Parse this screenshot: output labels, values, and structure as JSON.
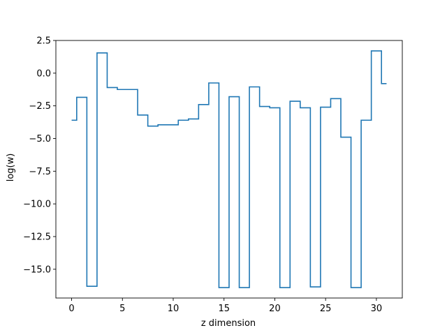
{
  "chart_data": {
    "type": "line",
    "drawstyle": "steps-mid",
    "title": "",
    "xlabel": "z dimension",
    "ylabel": "log(w)",
    "xlim": [
      -1.55,
      32.55
    ],
    "ylim": [
      -17.2,
      2.5
    ],
    "xticks": [
      0,
      5,
      10,
      15,
      20,
      25,
      30
    ],
    "xtick_labels": [
      "0",
      "5",
      "10",
      "15",
      "20",
      "25",
      "30"
    ],
    "yticks": [
      2.5,
      0.0,
      -2.5,
      -5.0,
      -7.5,
      -10.0,
      -12.5,
      -15.0
    ],
    "ytick_labels": [
      "2.5",
      "0.0",
      "−2.5",
      "−5.0",
      "−7.5",
      "−10.0",
      "−12.5",
      "−15.0"
    ],
    "grid": false,
    "legend": "none",
    "series": [
      {
        "color": "#1f77b4",
        "x": [
          0,
          1,
          2,
          3,
          4,
          5,
          6,
          7,
          8,
          9,
          10,
          11,
          12,
          13,
          14,
          15,
          16,
          17,
          18,
          19,
          20,
          21,
          22,
          23,
          24,
          25,
          26,
          27,
          28,
          29,
          30,
          31
        ],
        "y": [
          -3.6,
          -1.85,
          -16.3,
          1.55,
          -1.1,
          -1.25,
          -1.25,
          -3.2,
          -4.05,
          -3.95,
          -3.95,
          -3.6,
          -3.5,
          -2.4,
          -0.75,
          -16.4,
          -1.8,
          -16.4,
          -1.05,
          -2.55,
          -2.65,
          -16.4,
          -2.15,
          -2.65,
          -16.35,
          -2.6,
          -1.95,
          -4.9,
          -16.4,
          -3.6,
          1.7,
          -0.8
        ]
      }
    ]
  }
}
